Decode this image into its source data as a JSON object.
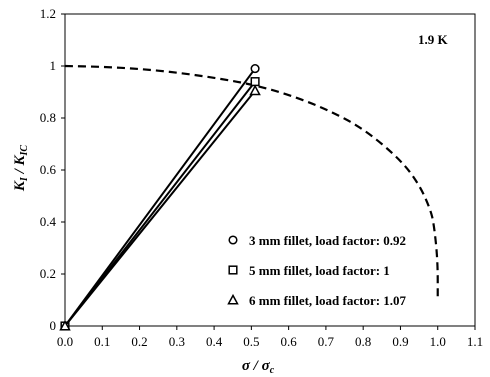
{
  "chart_data": {
    "type": "line",
    "xlabel": {
      "main": "σ / σ",
      "sub": "c"
    },
    "ylabel": {
      "main": "K",
      "sub1": "I",
      "mid": " / K",
      "sub2": "IC"
    },
    "annotation": "1.9 K",
    "xlim": [
      0.0,
      1.1
    ],
    "ylim": [
      0,
      1.2
    ],
    "x_ticks": [
      "0.0",
      "0.1",
      "0.2",
      "0.3",
      "0.4",
      "0.5",
      "0.6",
      "0.7",
      "0.8",
      "0.9",
      "1.0",
      "1.1"
    ],
    "y_ticks": [
      "0",
      "0.2",
      "0.4",
      "0.6",
      "0.8",
      "1",
      "1.2"
    ],
    "grid": false,
    "legend_position": "bottom-right",
    "curve": {
      "style": "dashed",
      "x": [
        0.0,
        0.1,
        0.2,
        0.3,
        0.4,
        0.5,
        0.6,
        0.7,
        0.8,
        0.9,
        0.95,
        0.98,
        0.99,
        1.0,
        1.0
      ],
      "y": [
        1.0,
        0.997,
        0.989,
        0.975,
        0.955,
        0.93,
        0.89,
        0.835,
        0.76,
        0.64,
        0.545,
        0.45,
        0.39,
        0.25,
        0.1
      ]
    },
    "series": [
      {
        "label": "3  mm fillet, load factor: 0.92",
        "marker": "circle",
        "x": [
          0.0,
          0.51
        ],
        "y": [
          0.0,
          0.99
        ]
      },
      {
        "label": "5  mm fillet, load factor: 1",
        "marker": "square",
        "x": [
          0.0,
          0.51
        ],
        "y": [
          0.0,
          0.94
        ]
      },
      {
        "label": "6  mm fillet, load factor: 1.07",
        "marker": "triangle",
        "x": [
          0.0,
          0.51
        ],
        "y": [
          0.0,
          0.905
        ]
      }
    ]
  }
}
